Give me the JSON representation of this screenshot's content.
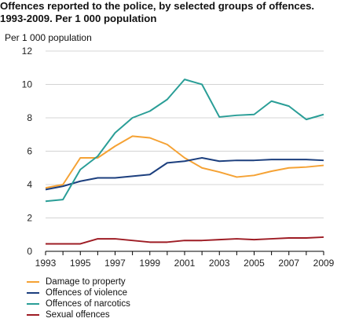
{
  "title_line1": "Offences reported to the police, by selected groups of offences.",
  "title_line2": "1993-2009. Per 1 000 population",
  "chart_data": {
    "type": "line",
    "title": "Offences reported to the police, by selected groups of offences. 1993-2009. Per 1 000 population",
    "ylabel": "Per 1 000 population",
    "xlabel": "",
    "x": [
      1993,
      1994,
      1995,
      1996,
      1997,
      1998,
      1999,
      2000,
      2001,
      2002,
      2003,
      2004,
      2005,
      2006,
      2007,
      2008,
      2009
    ],
    "xticks": [
      "1993",
      "1995",
      "1997",
      "1999",
      "2001",
      "2003",
      "2005",
      "2007",
      "2009"
    ],
    "yticks": [
      "0",
      "2",
      "4",
      "6",
      "8",
      "10",
      "12"
    ],
    "ylim": [
      0,
      12
    ],
    "xlim": [
      1993,
      2009
    ],
    "grid": "horizontal",
    "legend_position": "bottom-left",
    "series": [
      {
        "name": "Damage to property",
        "color": "#f5a234",
        "values": [
          3.8,
          4.0,
          5.6,
          5.6,
          6.3,
          6.9,
          6.8,
          6.4,
          5.6,
          5.0,
          4.75,
          4.45,
          4.55,
          4.8,
          5.0,
          5.05,
          5.15
        ]
      },
      {
        "name": "Offences of violence",
        "color": "#1c3f7e",
        "values": [
          3.7,
          3.9,
          4.2,
          4.4,
          4.4,
          4.5,
          4.6,
          5.3,
          5.4,
          5.6,
          5.4,
          5.45,
          5.45,
          5.5,
          5.5,
          5.5,
          5.45
        ]
      },
      {
        "name": "Offences of narcotics",
        "color": "#2a9e97",
        "values": [
          3.0,
          3.1,
          4.9,
          5.7,
          7.1,
          8.0,
          8.4,
          9.1,
          10.3,
          10.0,
          8.05,
          8.15,
          8.2,
          9.0,
          8.7,
          7.9,
          8.2
        ]
      },
      {
        "name": "Sexual offences",
        "color": "#9e1c24",
        "values": [
          0.45,
          0.45,
          0.45,
          0.75,
          0.75,
          0.65,
          0.55,
          0.55,
          0.65,
          0.65,
          0.7,
          0.75,
          0.7,
          0.75,
          0.8,
          0.8,
          0.85
        ]
      }
    ]
  }
}
